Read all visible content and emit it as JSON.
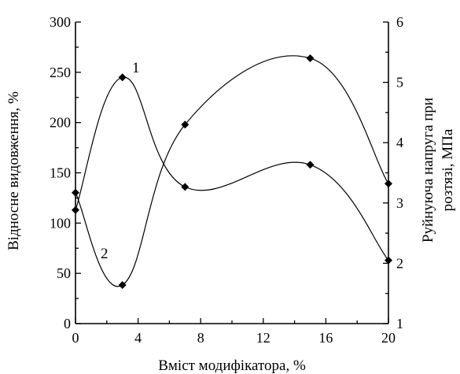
{
  "chart_data": {
    "type": "line",
    "xlabel": "Вміст модифікатора, %",
    "ylabel_left": "Відносне видовження, %",
    "ylabel_right": "Руйнуюча напруга при розтязі, МПа",
    "ylabel_right_lines": [
      "Руйнуюча напруга при",
      "розтязі, МПа"
    ],
    "xlim": [
      0,
      20
    ],
    "ylim_left": [
      0,
      300
    ],
    "ylim_right": [
      1,
      6
    ],
    "x_ticks": [
      0,
      4,
      8,
      12,
      16,
      20
    ],
    "y_left_ticks": [
      0,
      50,
      100,
      150,
      200,
      250,
      300
    ],
    "y_right_ticks": [
      1,
      2,
      3,
      4,
      5,
      6
    ],
    "grid": false,
    "series": [
      {
        "name": "1",
        "axis": "left",
        "x": [
          0,
          3,
          7,
          15,
          20
        ],
        "y": [
          113,
          245,
          136,
          158,
          63
        ]
      },
      {
        "name": "2",
        "axis": "right",
        "x": [
          0,
          3,
          7,
          15,
          20
        ],
        "y": [
          3.17,
          1.64,
          4.3,
          5.4,
          3.32
        ]
      }
    ]
  }
}
